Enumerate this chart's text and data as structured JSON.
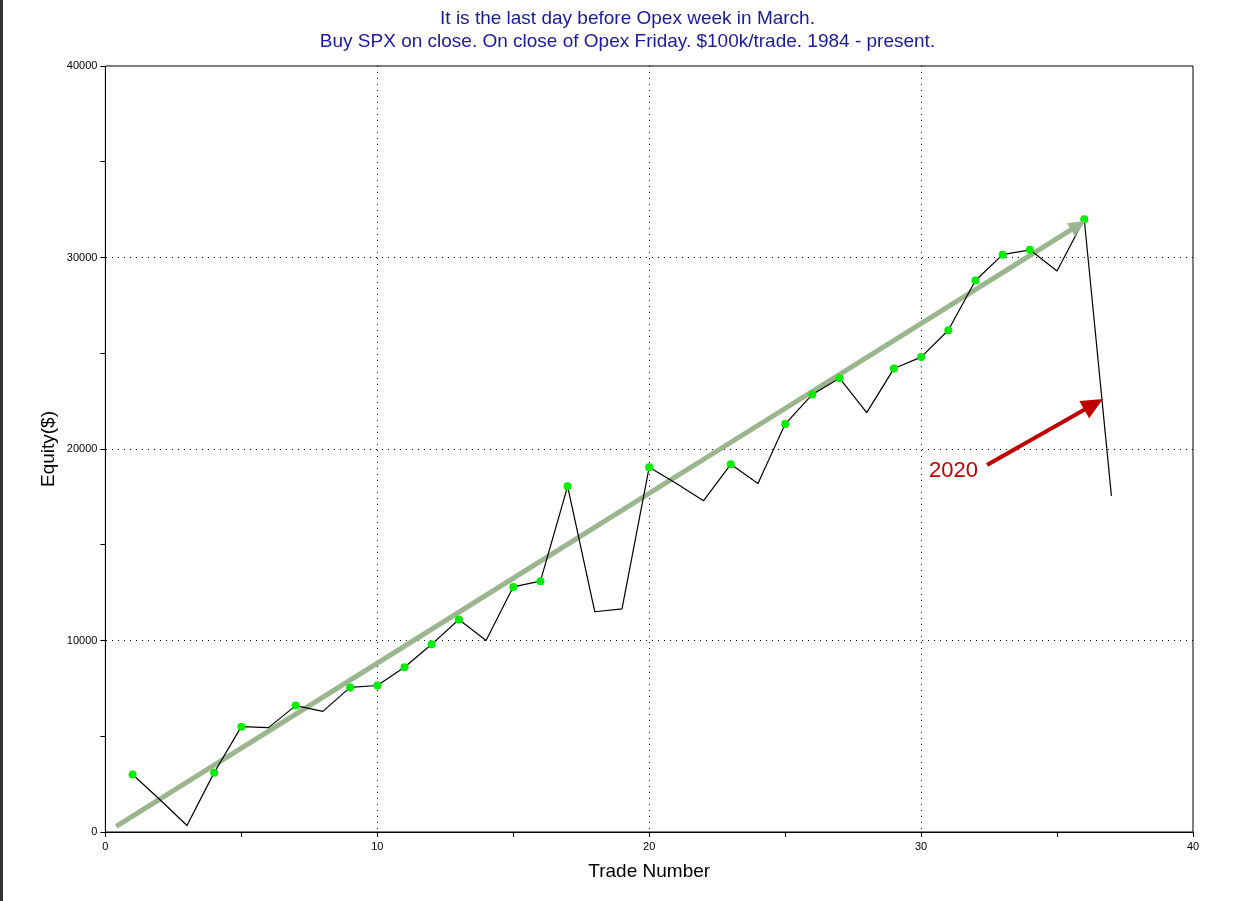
{
  "chart_data": {
    "type": "line",
    "title": "It is the last day before Opex week in March.",
    "subtitle": "Buy SPX on close. On close of Opex Friday. $100k/trade. 1984 - present.",
    "xlabel": "Trade Number",
    "ylabel": "Equity($)",
    "x": [
      1,
      2,
      3,
      4,
      5,
      6,
      7,
      8,
      9,
      10,
      11,
      12,
      13,
      14,
      15,
      16,
      17,
      18,
      19,
      20,
      21,
      22,
      23,
      24,
      25,
      26,
      27,
      28,
      29,
      30,
      31,
      32,
      33,
      34,
      35,
      36,
      37
    ],
    "series": [
      {
        "color": "#000000",
        "marker": "none",
        "values": [
          3000,
          1700,
          340,
          3100,
          5500,
          5450,
          6600,
          6300,
          7550,
          7650,
          8600,
          9800,
          11100,
          10000,
          12800,
          13100,
          18050,
          11500,
          11650,
          19050,
          18200,
          17300,
          19200,
          18200,
          21300,
          22850,
          23700,
          21900,
          24200,
          24800,
          26200,
          28800,
          30150,
          30400,
          29300,
          32000,
          17550
        ]
      },
      {
        "type": "scatter",
        "color": "#00ee00",
        "marker": "circle",
        "x": [
          1,
          4,
          5,
          7,
          9,
          10,
          11,
          12,
          13,
          15,
          16,
          17,
          20,
          23,
          25,
          26,
          27,
          29,
          30,
          31,
          32,
          33,
          34,
          36
        ],
        "values": [
          3000,
          3100,
          5500,
          6600,
          7550,
          7650,
          8600,
          9800,
          11100,
          12800,
          13100,
          18050,
          19050,
          19200,
          21300,
          22850,
          23700,
          24200,
          24800,
          26200,
          28800,
          30150,
          30400,
          32000
        ]
      },
      {
        "type": "line",
        "color": "#9bb58e",
        "x": [
          0.4,
          35.8
        ],
        "values": [
          300,
          31700
        ]
      }
    ],
    "xlim": [
      0,
      40
    ],
    "xticks": [
      0,
      {
        "value": 5,
        "label": null
      },
      10,
      {
        "value": 15,
        "label": null
      },
      20,
      {
        "value": 25,
        "label": null
      },
      30,
      {
        "value": 35,
        "label": null
      },
      40
    ],
    "ylim": [
      0,
      40000
    ],
    "yticks": [
      0,
      {
        "value": 5000,
        "label": null
      },
      10000,
      {
        "value": 15000,
        "label": null
      },
      20000,
      {
        "value": 25000,
        "label": null
      },
      30000,
      {
        "value": 35000,
        "label": null
      },
      40000
    ],
    "grid": true,
    "legend": false,
    "annotations": [
      "2020"
    ]
  }
}
